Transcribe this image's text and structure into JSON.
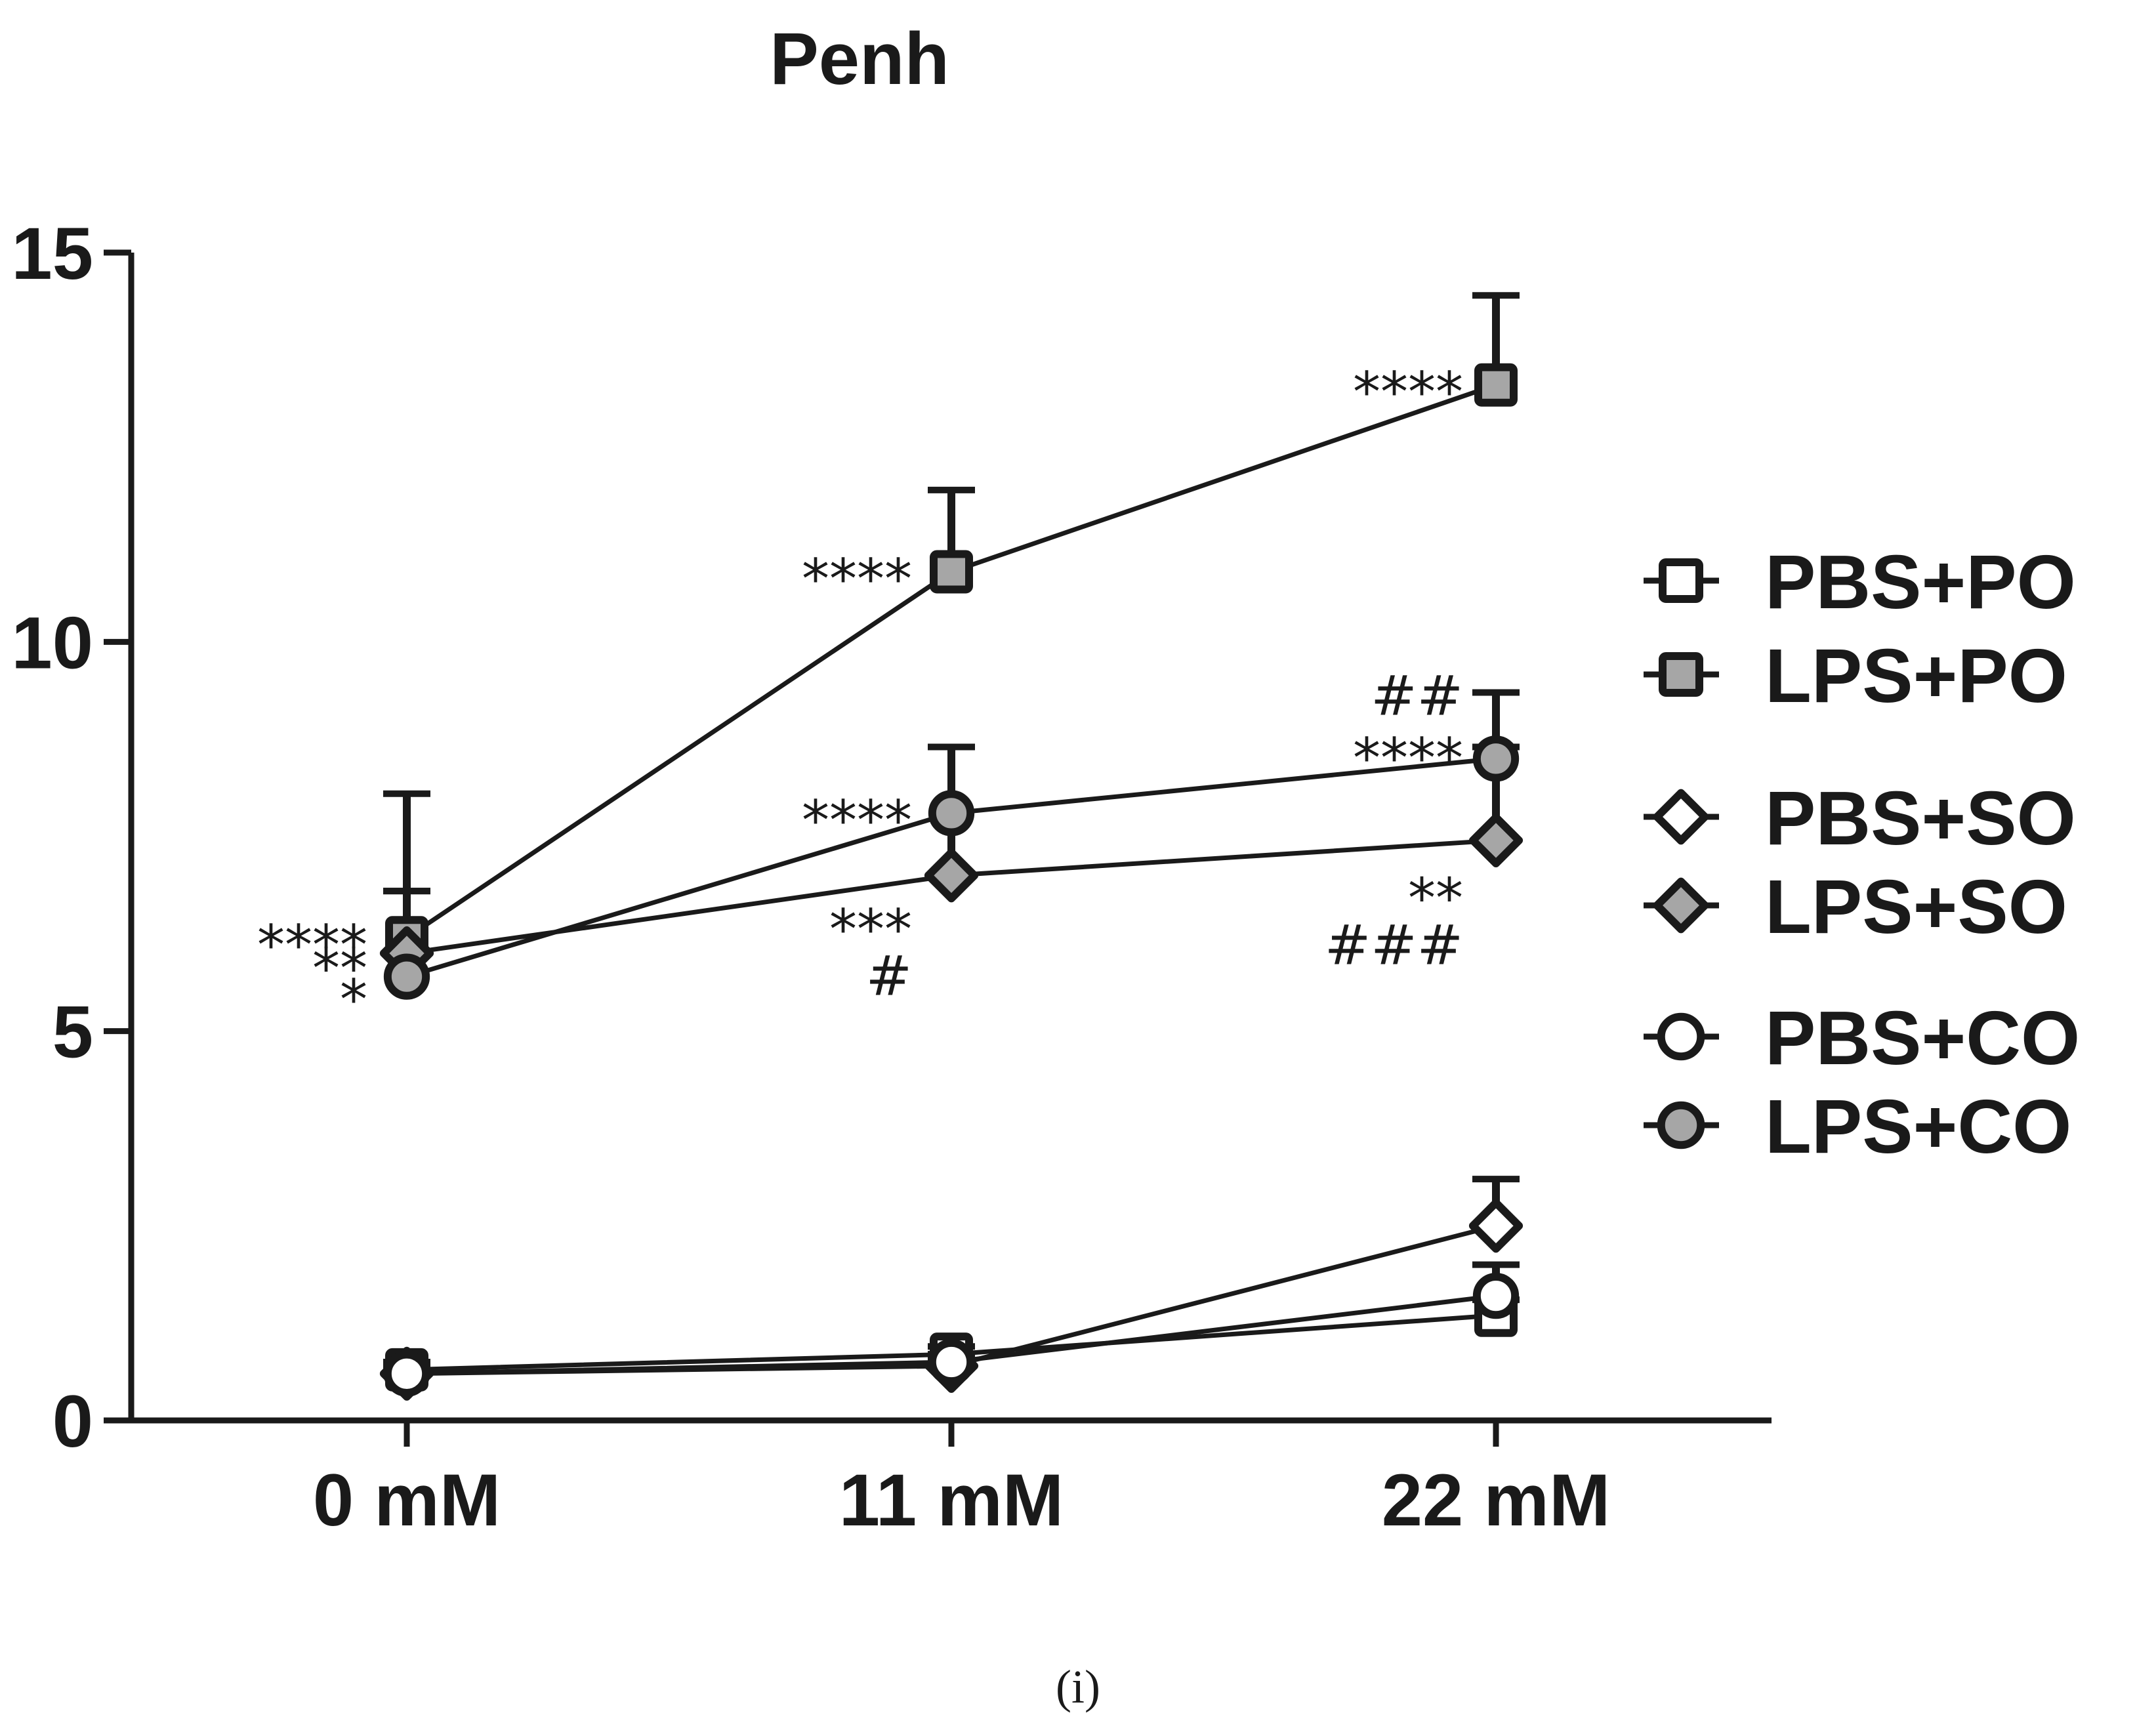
{
  "chart_data": {
    "type": "line",
    "title": "Penh",
    "caption": "(i)",
    "categories": [
      "0 mM",
      "11 mM",
      "22 mM"
    ],
    "ylim": [
      0,
      15
    ],
    "yticks": [
      0,
      5,
      10,
      15
    ],
    "legend_position": "right",
    "series": [
      {
        "name": "PBS+PO",
        "marker": "square",
        "fill": "#ffffff",
        "values": [
          0.65,
          0.85,
          1.35
        ],
        "err": [
          0.1,
          0.1,
          0.2
        ]
      },
      {
        "name": "LPS+PO",
        "marker": "square",
        "fill": "#a6a6a6",
        "values": [
          6.2,
          10.9,
          13.3
        ],
        "err": [
          1.85,
          1.05,
          1.15
        ]
      },
      {
        "name": "PBS+SO",
        "marker": "diamond",
        "fill": "#ffffff",
        "values": [
          0.6,
          0.7,
          2.5
        ],
        "err": [
          0.1,
          0.1,
          0.6
        ]
      },
      {
        "name": "LPS+SO",
        "marker": "diamond",
        "fill": "#a6a6a6",
        "values": [
          6.0,
          7.0,
          7.45
        ],
        "err": [
          0.8,
          1.65,
          1.2
        ]
      },
      {
        "name": "PBS+CO",
        "marker": "circle",
        "fill": "#ffffff",
        "values": [
          0.6,
          0.75,
          1.6
        ],
        "err": [
          0.1,
          0.1,
          0.4
        ]
      },
      {
        "name": "LPS+CO",
        "marker": "circle",
        "fill": "#a6a6a6",
        "values": [
          5.7,
          7.8,
          8.5
        ],
        "err": [
          1.1,
          0.85,
          0.85
        ]
      }
    ],
    "annotations": [
      {
        "text": "****",
        "x": "0 mM",
        "y": 6.2
      },
      {
        "text": "**",
        "x": "0 mM",
        "y": 5.9
      },
      {
        "text": "*",
        "x": "0 mM",
        "y": 5.5
      },
      {
        "text": "****",
        "x": "11 mM",
        "y": 10.9
      },
      {
        "text": "****",
        "x": "11 mM",
        "y": 7.8
      },
      {
        "text": "***",
        "x": "11 mM",
        "y": 6.4
      },
      {
        "text": "#",
        "x": "11 mM",
        "y": 5.8
      },
      {
        "text": "****",
        "x": "22 mM",
        "y": 13.3
      },
      {
        "text": "##",
        "x": "22 mM",
        "y": 9.4
      },
      {
        "text": "****",
        "x": "22 mM",
        "y": 8.6
      },
      {
        "text": "**",
        "x": "22 mM",
        "y": 6.8
      },
      {
        "text": "###",
        "x": "22 mM",
        "y": 6.2
      }
    ]
  }
}
